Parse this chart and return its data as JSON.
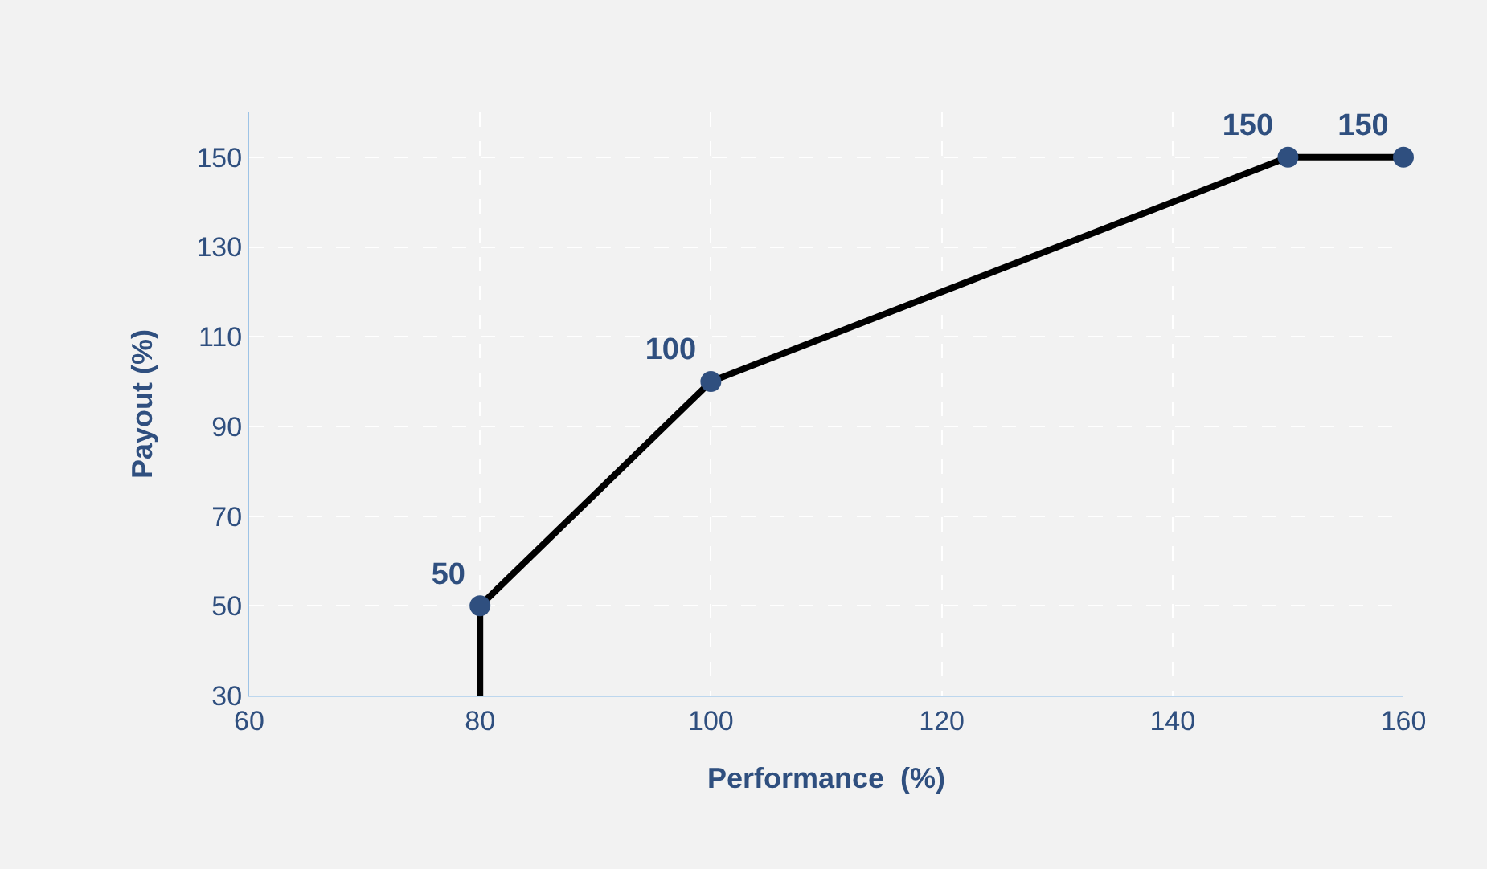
{
  "chart_data": {
    "type": "line",
    "xlabel": "Performance  (%)",
    "ylabel": "Payout (%)",
    "xlim": [
      60,
      160
    ],
    "xticks": [
      60,
      80,
      100,
      120,
      140,
      160
    ],
    "ylim": [
      30,
      160
    ],
    "yticks": [
      30,
      50,
      70,
      90,
      110,
      130,
      150
    ],
    "grid": true,
    "series": [
      {
        "type": "line",
        "color": "#000000",
        "marker": "none",
        "x": [
          80,
          80,
          100,
          150,
          160
        ],
        "values": [
          30,
          50,
          100,
          150,
          150
        ]
      },
      {
        "type": "scatter",
        "color": "#2f4f7f",
        "marker": "circle",
        "x": [
          80,
          100,
          150,
          160
        ],
        "values": [
          50,
          100,
          150,
          150
        ],
        "value_labels": [
          "50",
          "100",
          "150",
          "150"
        ]
      }
    ]
  }
}
